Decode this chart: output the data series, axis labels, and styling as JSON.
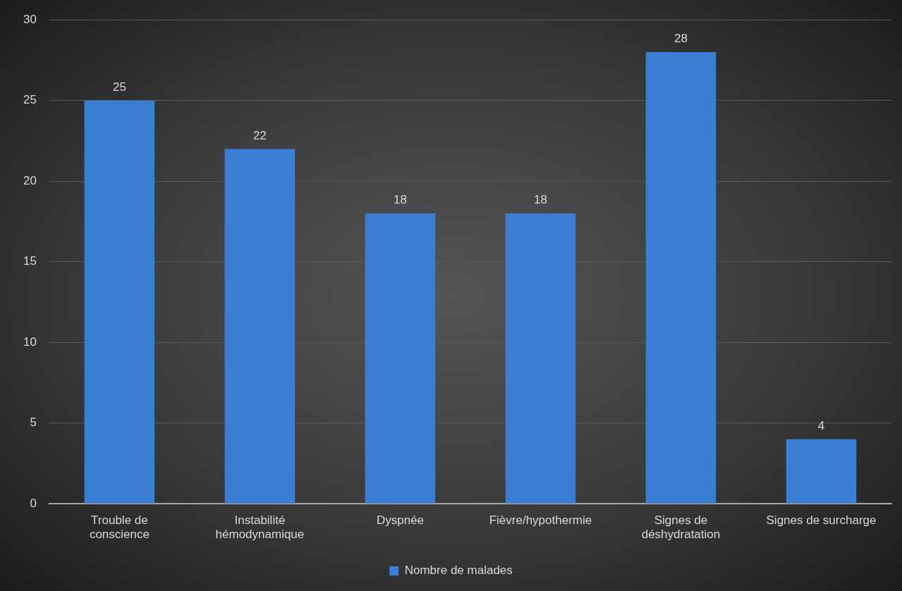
{
  "chart_data": {
    "type": "bar",
    "categories": [
      "Trouble de conscience",
      "Instabilité hémodynamique",
      "Dyspnée",
      "Fièvre/hypothermie",
      "Signes de déshydratation",
      "Signes de surcharge"
    ],
    "series": [
      {
        "name": "Nombre de malades",
        "color": "#3b7fd4",
        "values": [
          25,
          22,
          18,
          18,
          28,
          4
        ]
      }
    ],
    "ylim": [
      0,
      30
    ],
    "yticks": [
      0,
      5,
      10,
      15,
      20,
      25,
      30
    ],
    "grid": "y",
    "legend": "bottom",
    "data_labels": true
  }
}
